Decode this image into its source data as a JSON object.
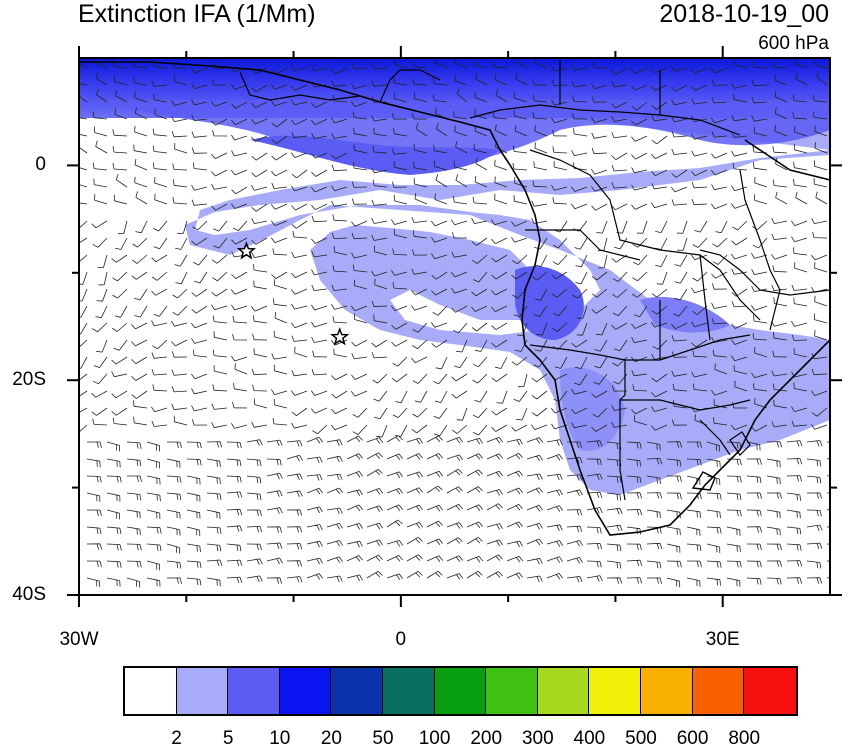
{
  "title": "Extinction IFA (1/Mm)",
  "date": "2018-10-19_00",
  "level": "600 hPa",
  "map": {
    "lon_range": [
      -30,
      40
    ],
    "lat_range": [
      -40,
      10
    ],
    "x_ticks": [
      {
        "lon": -30,
        "label": "30W"
      },
      {
        "lon": 0,
        "label": "0"
      },
      {
        "lon": 30,
        "label": "30E"
      }
    ],
    "y_ticks": [
      {
        "lat": 0,
        "label": "0"
      },
      {
        "lat": -20,
        "label": "20S"
      },
      {
        "lat": -40,
        "label": "40S"
      }
    ],
    "minor_x_ticks": [
      -20,
      -10,
      10,
      20
    ],
    "minor_y_ticks": [
      -10,
      -30
    ],
    "markers": [
      {
        "name": "star",
        "lon": -14.4,
        "lat": -8.0
      },
      {
        "name": "star",
        "lon": -5.7,
        "lat": -16.0
      }
    ],
    "overlay": "wind-barbs"
  },
  "colorbar": {
    "labels": [
      "2",
      "5",
      "10",
      "20",
      "50",
      "100",
      "200",
      "300",
      "400",
      "500",
      "600",
      "800"
    ],
    "colors": [
      "#ffffff",
      "#a8acf8",
      "#5a5cf4",
      "#0a14f0",
      "#0a32aa",
      "#087060",
      "#08a010",
      "#40c010",
      "#a8d820",
      "#f0f008",
      "#f8b000",
      "#f86000",
      "#f81010"
    ]
  }
}
